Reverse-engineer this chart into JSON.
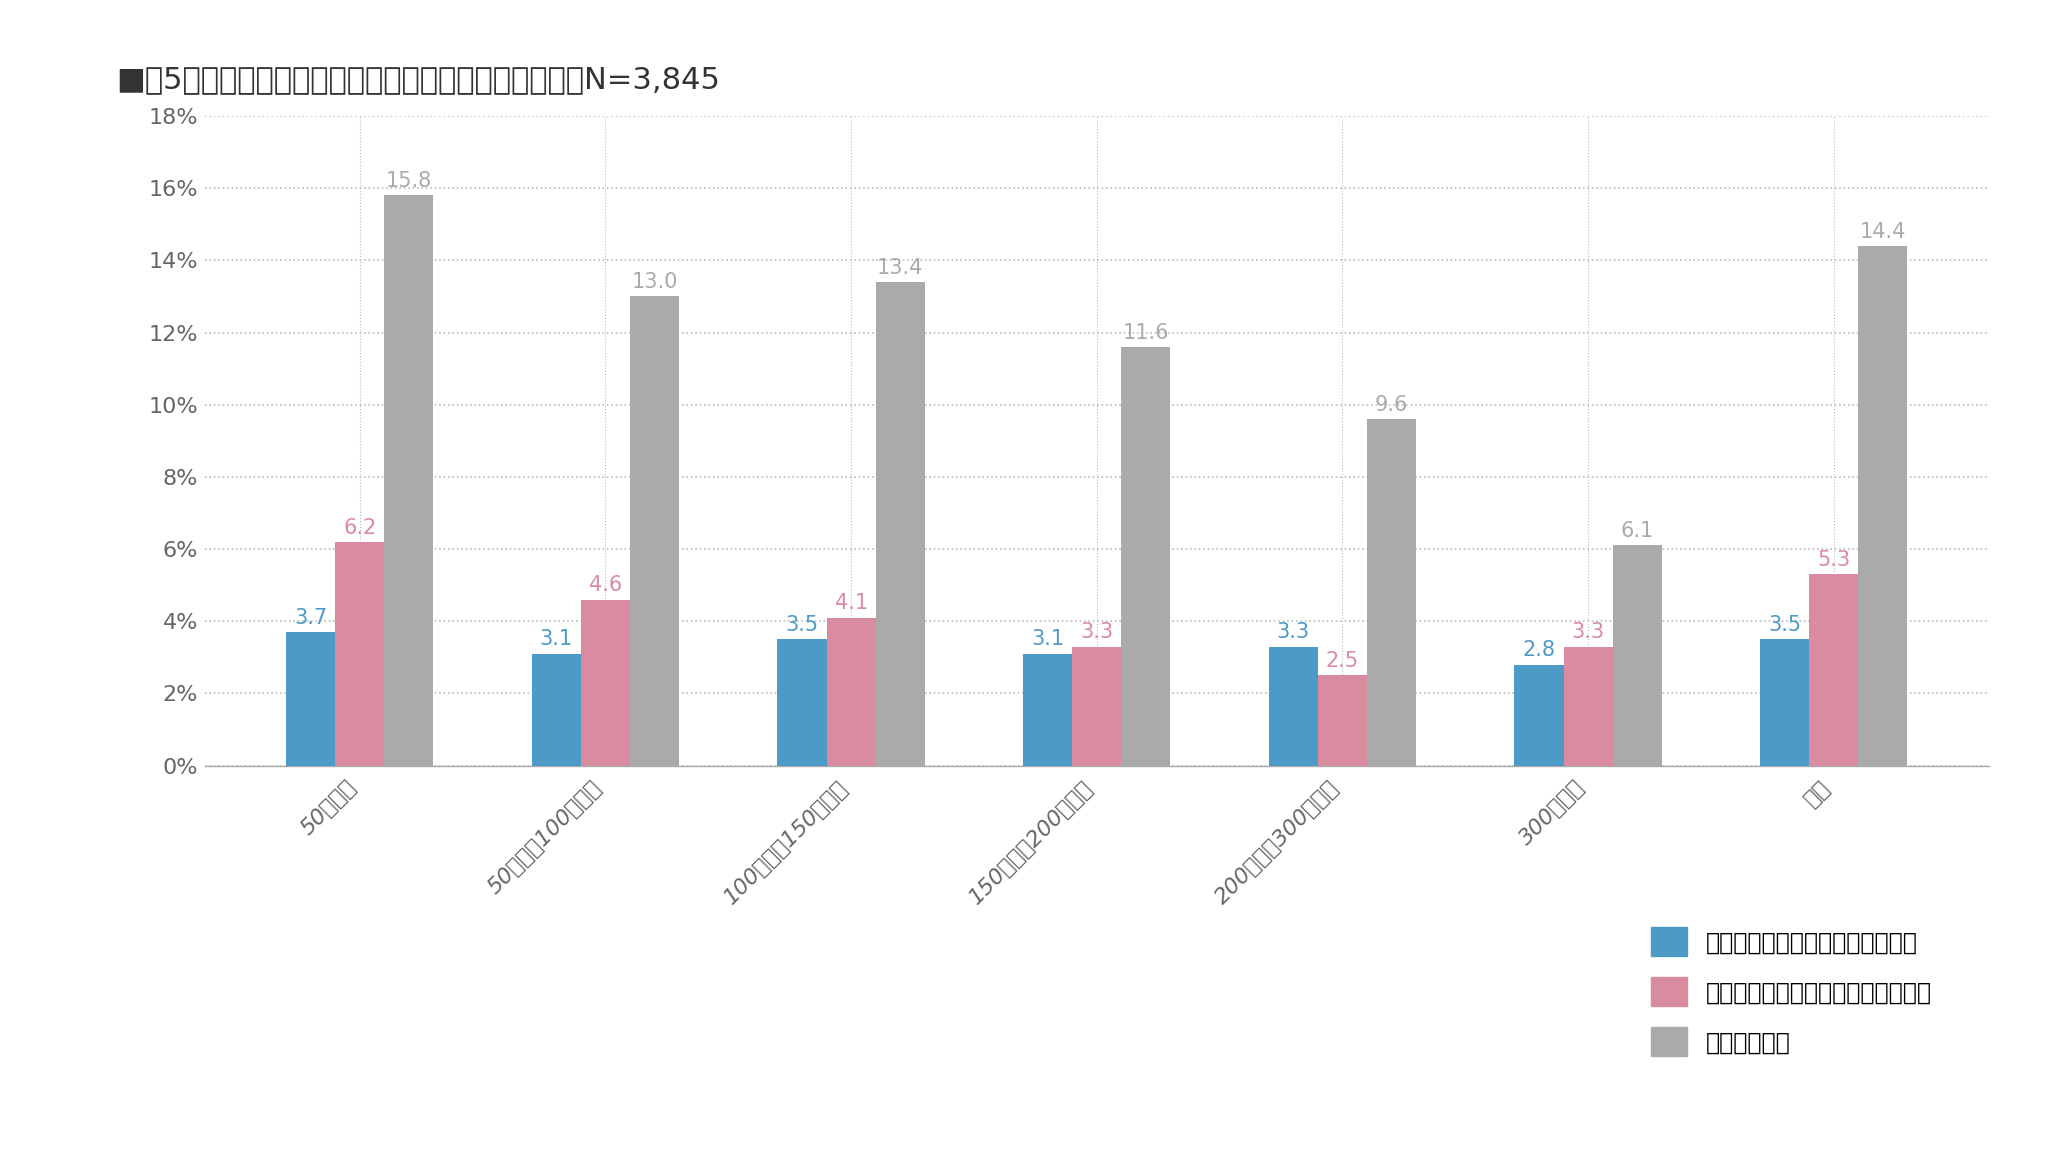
{
  "title": "■図5　外部区分所有者率と連続未実施率（戸数帯別）N=3,845",
  "categories": [
    "50戸未満",
    "50戸以上100戸未満",
    "100戸以上150戸未満",
    "150戸以上200戸未満",
    "200戸以上300戸未満",
    "300戸以上",
    "総計"
  ],
  "series": [
    {
      "name": "平均／雑排水管清掃連続未実施率",
      "values": [
        3.7,
        3.1,
        3.5,
        3.1,
        3.3,
        2.8,
        3.5
      ],
      "color": "#4E9AC7"
    },
    {
      "name": "平均／消防用設備点検連続未実施率",
      "values": [
        6.2,
        4.6,
        4.1,
        3.3,
        2.5,
        3.3,
        5.3
      ],
      "color": "#D98BA0"
    },
    {
      "name": "平均／賃貸率",
      "values": [
        15.8,
        13.0,
        13.4,
        11.6,
        9.6,
        6.1,
        14.4
      ],
      "color": "#AAAAAA"
    }
  ],
  "ylim": [
    0,
    18
  ],
  "yticks": [
    0,
    2,
    4,
    6,
    8,
    10,
    12,
    14,
    16,
    18
  ],
  "background_color": "#ffffff",
  "title_fontsize": 22,
  "tick_fontsize": 16,
  "legend_fontsize": 17,
  "bar_value_fontsize": 15,
  "grid_color": "#bbbbbb",
  "bar_width": 0.2
}
